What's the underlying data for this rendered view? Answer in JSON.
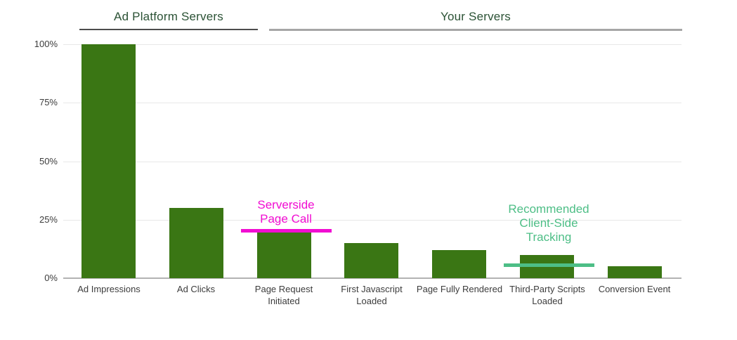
{
  "colors": {
    "bar_green": "#3A7614",
    "header_green": "#2B5235",
    "left_rule_gray": "#4D4D4D",
    "right_rule_gray": "#A6A6A6",
    "gridline_gray": "#E8E8E8",
    "axis_baseline_gray": "#B3B3B3",
    "tick_text_gray": "#3C3C3C",
    "annotation_magenta": "#F10DD2",
    "annotation_teal": "#4DBE86"
  },
  "group_headers": [
    {
      "label": "Ad Platform Servers"
    },
    {
      "label": "Your Servers"
    }
  ],
  "chart_data": {
    "type": "bar",
    "categories": [
      "Ad Impressions",
      "Ad Clicks",
      "Page Request Initiated",
      "First Javascript Loaded",
      "Page Fully Rendered",
      "Third-Party Scripts Loaded",
      "Conversion Event"
    ],
    "values": [
      100,
      30,
      20,
      15,
      12,
      10,
      5
    ],
    "bar_color": "#3A7614",
    "title": "",
    "xlabel": "",
    "ylabel": "",
    "ylim": [
      0,
      100
    ],
    "yticks": [
      0,
      25,
      50,
      75,
      100
    ],
    "ytick_labels": [
      "0%",
      "25%",
      "50%",
      "75%",
      "100%"
    ],
    "grid": true,
    "legend_position": "none",
    "groups": [
      {
        "label": "Ad Platform Servers",
        "categories": [
          "Ad Impressions",
          "Ad Clicks"
        ]
      },
      {
        "label": "Your Servers",
        "categories": [
          "Page Request Initiated",
          "First Javascript Loaded",
          "Page Fully Rendered",
          "Third-Party Scripts Loaded",
          "Conversion Event"
        ]
      }
    ],
    "annotations": [
      {
        "label": "Serverside\nPage Call",
        "label_plain": "Serverside Page Call",
        "category": "Page Request Initiated",
        "level_percent": 20,
        "color": "#F10DD2"
      },
      {
        "label": "Recommended\nClient-Side\nTracking",
        "label_plain": "Recommended Client-Side Tracking",
        "category": "Third-Party Scripts Loaded",
        "level_percent": 6,
        "color": "#4DBE86"
      }
    ]
  }
}
